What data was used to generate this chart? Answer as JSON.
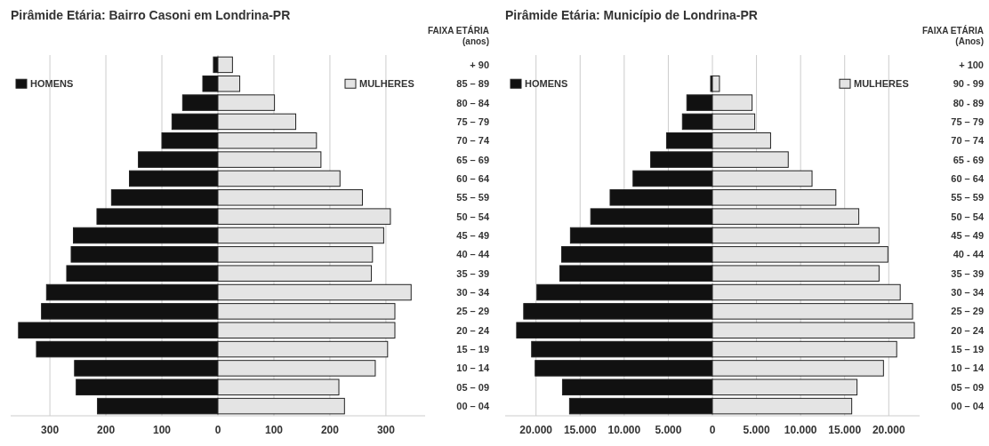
{
  "chart_data": [
    {
      "type": "bar",
      "orientation": "horizontal",
      "stacked": true,
      "title": "Pirâmide Etária: Bairro Casoni em Londrina-PR",
      "ylabel": "FAIXA ETÁRIA\n(anos)",
      "categories": [
        "+ 90",
        "85 – 89",
        "80 – 84",
        "75 – 79",
        "70 – 74",
        "65 – 69",
        "60 – 64",
        "55 – 59",
        "50 – 54",
        "45 – 49",
        "40 – 44",
        "35 – 39",
        "30 – 34",
        "25 – 29",
        "20 – 24",
        "15 – 19",
        "10 – 14",
        "05 – 09",
        "00 – 04"
      ],
      "series": [
        {
          "name": "HOMENS",
          "color": "#111111",
          "values": [
            -8,
            -27,
            -63,
            -82,
            -100,
            -142,
            -158,
            -190,
            -216,
            -258,
            -262,
            -270,
            -306,
            -315,
            -356,
            -324,
            -256,
            -253,
            -215
          ]
        },
        {
          "name": "MULHERES",
          "color": "#e4e4e4",
          "values": [
            26,
            39,
            101,
            139,
            176,
            184,
            218,
            258,
            308,
            296,
            276,
            274,
            345,
            316,
            316,
            303,
            281,
            216,
            226
          ]
        }
      ],
      "xlim": [
        -370,
        370
      ],
      "xticks": [
        {
          "value": -300,
          "label": "300"
        },
        {
          "value": -200,
          "label": "200"
        },
        {
          "value": -100,
          "label": "100"
        },
        0,
        100,
        200,
        300
      ],
      "grid": "x",
      "legend": "top"
    },
    {
      "type": "bar",
      "orientation": "horizontal",
      "stacked": true,
      "title": "Pirâmide Etária: Município de Londrina-PR",
      "ylabel": "FAIXA ETÁRIA\n(Anos)",
      "categories": [
        "+ 100",
        "90 - 99",
        "80 - 89",
        "75 – 79",
        "70 – 74",
        "65 - 69",
        "60 – 64",
        "55 – 59",
        "50 – 54",
        "45 – 49",
        "40 - 44",
        "35 – 39",
        "30 – 34",
        "25 – 29",
        "20 – 24",
        "15 – 19",
        "10 – 14",
        "05 – 09",
        "00 – 04"
      ],
      "series": [
        {
          "name": "HOMENS",
          "color": "#111111",
          "values": [
            null,
            -200,
            -2900,
            -3400,
            -5200,
            -7000,
            -9000,
            -11600,
            -13800,
            -16100,
            -17100,
            -17300,
            -19900,
            -21400,
            -22200,
            -20500,
            -20100,
            -17000,
            -16200
          ]
        },
        {
          "name": "MULHERES",
          "color": "#e4e4e4",
          "values": [
            null,
            800,
            4500,
            4800,
            6600,
            8600,
            11300,
            14000,
            16600,
            18900,
            19900,
            18900,
            21300,
            22700,
            22900,
            20900,
            19400,
            16400,
            15800
          ]
        }
      ],
      "xlim": [
        -23500,
        23500
      ],
      "xticks": [
        {
          "value": -20000,
          "label": "20.000"
        },
        {
          "value": -15000,
          "label": "15.000"
        },
        {
          "value": -10000,
          "label": "10.000"
        },
        {
          "value": -5000,
          "label": "5.000"
        },
        0,
        {
          "value": 5000,
          "label": "5.000"
        },
        {
          "value": 10000,
          "label": "10.000"
        },
        {
          "value": 15000,
          "label": "15.000"
        },
        {
          "value": 20000,
          "label": "20.000"
        }
      ],
      "grid": "x",
      "legend": "top"
    }
  ]
}
